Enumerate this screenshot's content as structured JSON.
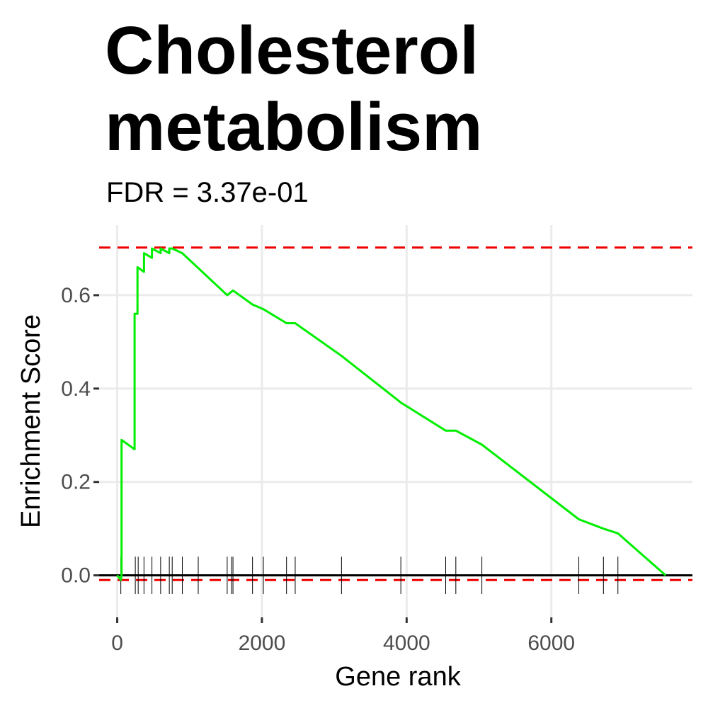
{
  "chart_data": {
    "type": "line",
    "title": "Cholesterol metabolism",
    "title_lines": [
      "Cholesterol",
      "metabolism"
    ],
    "subtitle": "FDR = 3.37e-01",
    "xlabel": "Gene rank",
    "ylabel": "Enrichment Score",
    "xlim": [
      -250,
      7950
    ],
    "ylim": [
      -0.09,
      0.75
    ],
    "x_ticks": [
      0,
      2000,
      4000,
      6000
    ],
    "x_tick_labels": [
      "0",
      "2000",
      "4000",
      "6000"
    ],
    "y_ticks": [
      0.0,
      0.2,
      0.4,
      0.6
    ],
    "y_tick_labels": [
      "0.0",
      "0.2",
      "0.4",
      "0.6"
    ],
    "grid": true,
    "colors": {
      "curve": "#00ee00",
      "reference_lines": "#ee0000",
      "zero_line": "#000000",
      "hits": "#000000",
      "grid": "#ebebeb"
    },
    "reference_lines": [
      0.702,
      -0.01
    ],
    "hits": [
      50,
      250,
      290,
      370,
      480,
      600,
      720,
      760,
      900,
      1120,
      1520,
      1580,
      1600,
      1870,
      2020,
      2340,
      2460,
      3100,
      3920,
      4540,
      4680,
      5040,
      6380,
      6720,
      6920
    ],
    "es_points": [
      [
        0,
        0.0
      ],
      [
        50,
        -0.01
      ],
      [
        60,
        0.0
      ],
      [
        60,
        0.29
      ],
      [
        240,
        0.27
      ],
      [
        240,
        0.56
      ],
      [
        280,
        0.56
      ],
      [
        280,
        0.66
      ],
      [
        370,
        0.65
      ],
      [
        370,
        0.69
      ],
      [
        480,
        0.68
      ],
      [
        480,
        0.7
      ],
      [
        600,
        0.69
      ],
      [
        600,
        0.7
      ],
      [
        720,
        0.69
      ],
      [
        720,
        0.7
      ],
      [
        760,
        0.7
      ],
      [
        900,
        0.69
      ],
      [
        1520,
        0.6
      ],
      [
        1600,
        0.61
      ],
      [
        1870,
        0.58
      ],
      [
        2020,
        0.57
      ],
      [
        2340,
        0.54
      ],
      [
        2460,
        0.54
      ],
      [
        3100,
        0.47
      ],
      [
        3920,
        0.37
      ],
      [
        4540,
        0.31
      ],
      [
        4680,
        0.31
      ],
      [
        5040,
        0.28
      ],
      [
        6380,
        0.12
      ],
      [
        6720,
        0.1
      ],
      [
        6920,
        0.09
      ],
      [
        7580,
        0.0
      ]
    ]
  }
}
